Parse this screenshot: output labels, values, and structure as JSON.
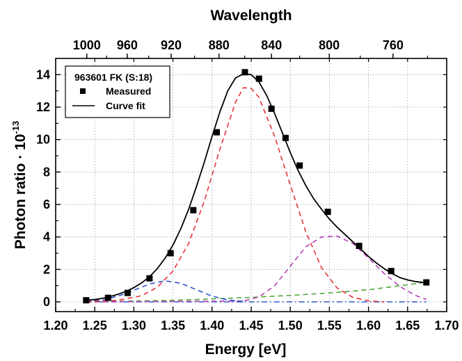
{
  "chart_data": {
    "type": "scatter",
    "title": "",
    "xlabel": "Energy [eV]",
    "ylabel": "Photon ratio · 10",
    "ylabel_exponent": "-13",
    "top_axis_label": "Wavelength",
    "xlim": [
      1.2,
      1.7
    ],
    "ylim": [
      -0.6,
      15
    ],
    "x_ticks": [
      "1.20",
      "1.25",
      "1.30",
      "1.35",
      "1.40",
      "1.45",
      "1.50",
      "1.55",
      "1.60",
      "1.65",
      "1.70"
    ],
    "y_ticks": [
      "0",
      "2",
      "4",
      "6",
      "8",
      "10",
      "12",
      "14"
    ],
    "top_ticks": [
      "1000",
      "960",
      "920",
      "880",
      "840",
      "800",
      "760"
    ],
    "grid": true,
    "legend": {
      "position": "top-left",
      "title": "963601 FK (S:18)",
      "entries": [
        "Measured",
        "Curve fit"
      ]
    },
    "series": [
      {
        "name": "Measured",
        "style": "square-markers",
        "color": "#000000",
        "x": [
          1.239,
          1.267,
          1.292,
          1.32,
          1.347,
          1.376,
          1.406,
          1.442,
          1.46,
          1.476,
          1.494,
          1.512,
          1.548,
          1.588,
          1.629,
          1.674
        ],
        "y": [
          0.1,
          0.25,
          0.55,
          1.45,
          3.0,
          5.65,
          10.45,
          14.15,
          13.75,
          11.9,
          10.1,
          8.4,
          5.55,
          3.45,
          1.9,
          1.2
        ]
      },
      {
        "name": "Curve fit",
        "style": "solid-line",
        "color": "#000000",
        "x": [
          1.239,
          1.25,
          1.26,
          1.27,
          1.28,
          1.29,
          1.3,
          1.31,
          1.32,
          1.33,
          1.34,
          1.35,
          1.36,
          1.37,
          1.38,
          1.39,
          1.4,
          1.41,
          1.42,
          1.43,
          1.44,
          1.45,
          1.46,
          1.47,
          1.48,
          1.49,
          1.5,
          1.51,
          1.52,
          1.53,
          1.54,
          1.55,
          1.56,
          1.57,
          1.58,
          1.59,
          1.6,
          1.61,
          1.62,
          1.63,
          1.64,
          1.65,
          1.66,
          1.674
        ],
        "y": [
          0.1,
          0.14,
          0.22,
          0.33,
          0.47,
          0.65,
          0.88,
          1.17,
          1.55,
          2.05,
          2.7,
          3.5,
          4.5,
          5.7,
          7.1,
          8.6,
          10.2,
          11.7,
          13.0,
          13.8,
          14.05,
          14.0,
          13.55,
          12.7,
          11.6,
          10.4,
          9.2,
          8.1,
          7.15,
          6.35,
          5.7,
          5.1,
          4.6,
          4.15,
          3.7,
          3.25,
          2.8,
          2.4,
          2.05,
          1.75,
          1.5,
          1.35,
          1.25,
          1.18
        ]
      },
      {
        "name": "",
        "style": "dashed-line",
        "color": "#e8313a",
        "x": [
          1.239,
          1.28,
          1.31,
          1.33,
          1.35,
          1.37,
          1.39,
          1.41,
          1.43,
          1.44,
          1.45,
          1.46,
          1.48,
          1.5,
          1.52,
          1.54,
          1.56,
          1.58,
          1.6,
          1.62
        ],
        "y": [
          0.0,
          0.1,
          0.38,
          0.9,
          1.9,
          3.6,
          6.2,
          9.4,
          12.3,
          13.2,
          13.15,
          12.6,
          10.2,
          7.2,
          4.3,
          2.1,
          0.85,
          0.28,
          0.07,
          0.0
        ]
      },
      {
        "name": "",
        "style": "dashed-line",
        "color": "#2b4fc9",
        "x": [
          1.239,
          1.26,
          1.28,
          1.3,
          1.32,
          1.34,
          1.36,
          1.38,
          1.4,
          1.42,
          1.44
        ],
        "y": [
          0.02,
          0.12,
          0.35,
          0.72,
          1.1,
          1.3,
          1.15,
          0.75,
          0.35,
          0.12,
          0.03
        ]
      },
      {
        "name": "",
        "style": "dashed-line",
        "color": "#b640b6",
        "x": [
          1.239,
          1.44,
          1.46,
          1.48,
          1.5,
          1.52,
          1.54,
          1.56,
          1.58,
          1.6,
          1.62,
          1.64,
          1.66,
          1.674
        ],
        "y": [
          0.0,
          0.05,
          0.3,
          1.0,
          2.2,
          3.4,
          4.0,
          4.05,
          3.6,
          2.7,
          1.75,
          0.95,
          0.4,
          0.15
        ]
      },
      {
        "name": "",
        "style": "dashed-line",
        "color": "#4fa83a",
        "x": [
          1.239,
          1.3,
          1.35,
          1.4,
          1.45,
          1.5,
          1.55,
          1.6,
          1.65,
          1.674
        ],
        "y": [
          0.0,
          0.05,
          0.1,
          0.18,
          0.28,
          0.4,
          0.55,
          0.75,
          1.05,
          1.22
        ]
      },
      {
        "name": "",
        "style": "dash-dot-line",
        "color": "#2f5cc9",
        "x": [
          1.239,
          1.674
        ],
        "y": [
          0.0,
          0.0
        ]
      }
    ]
  }
}
